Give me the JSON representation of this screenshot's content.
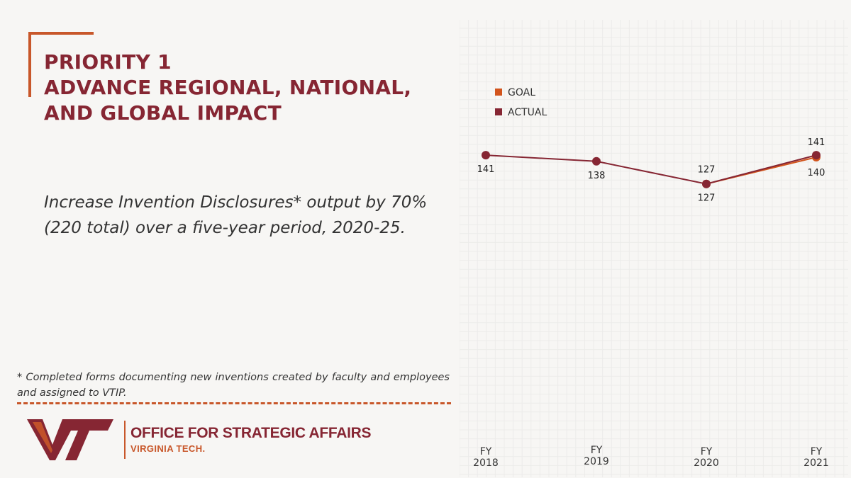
{
  "title": {
    "line1": "PRIORITY 1",
    "line2": "ADVANCE REGIONAL, NATIONAL,",
    "line3": "AND GLOBAL IMPACT"
  },
  "goal_text": "Increase Invention Disclosures* output by 70% (220 total) over a five-year period, 2020-25.",
  "footnote": "* Completed forms documenting new inventions created by faculty and employees and assigned to VTIP.",
  "logo": {
    "office": "OFFICE FOR STRATEGIC AFFAIRS",
    "university": "VIRGINIA TECH."
  },
  "colors": {
    "maroon": "#862633",
    "orange": "#c8572a"
  },
  "chart_data": {
    "type": "line",
    "categories": [
      [
        "FY",
        "2018"
      ],
      [
        "FY",
        "2019"
      ],
      [
        "FY",
        "2020"
      ],
      [
        "FY",
        "2021"
      ]
    ],
    "series": [
      {
        "name": "GOAL",
        "color": "#d2541c",
        "values": [
          null,
          null,
          127,
          140
        ]
      },
      {
        "name": "ACTUAL",
        "color": "#862633",
        "values": [
          141,
          138,
          127,
          141
        ]
      }
    ],
    "legend": [
      "GOAL",
      "ACTUAL"
    ],
    "legend_position": "top-left",
    "ylim": [
      0,
      200
    ],
    "grid": true
  }
}
